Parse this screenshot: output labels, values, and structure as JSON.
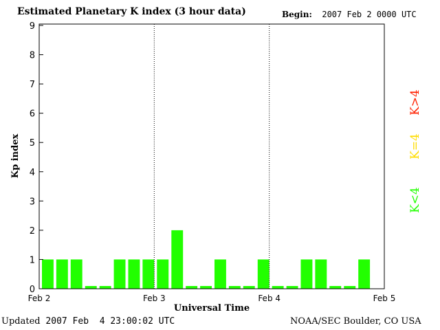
{
  "header": {
    "title": "Estimated Planetary K index (3 hour data)",
    "begin_label": "Begin:",
    "begin_value": "2007 Feb 2 0000 UTC"
  },
  "footer": {
    "updated_label": "Updated",
    "updated_value": "2007 Feb  4 23:00:02 UTC",
    "credit": "NOAA/SEC Boulder, CO USA"
  },
  "legend": {
    "high": {
      "label": "K>4",
      "color": "#ff2000"
    },
    "mid": {
      "label": "K=4",
      "color": "#ffdd00"
    },
    "low": {
      "label": "K<4",
      "color": "#22ff00"
    }
  },
  "chart_data": {
    "type": "bar",
    "xlabel": "Universal Time",
    "ylabel": "Kp index",
    "ylim": [
      0,
      9
    ],
    "yticks": [
      0,
      1,
      2,
      3,
      4,
      5,
      6,
      7,
      8,
      9
    ],
    "x_ticks": [
      "Feb 2",
      "Feb 3",
      "Feb 4",
      "Feb 5"
    ],
    "values": [
      1,
      1,
      1,
      0,
      0,
      1,
      1,
      1,
      1,
      2,
      0,
      0,
      1,
      0,
      0,
      1,
      0,
      0,
      1,
      1,
      0,
      0,
      1
    ],
    "bar_color": "#22ff00",
    "grid": "vertical dotted lines at day boundaries"
  }
}
